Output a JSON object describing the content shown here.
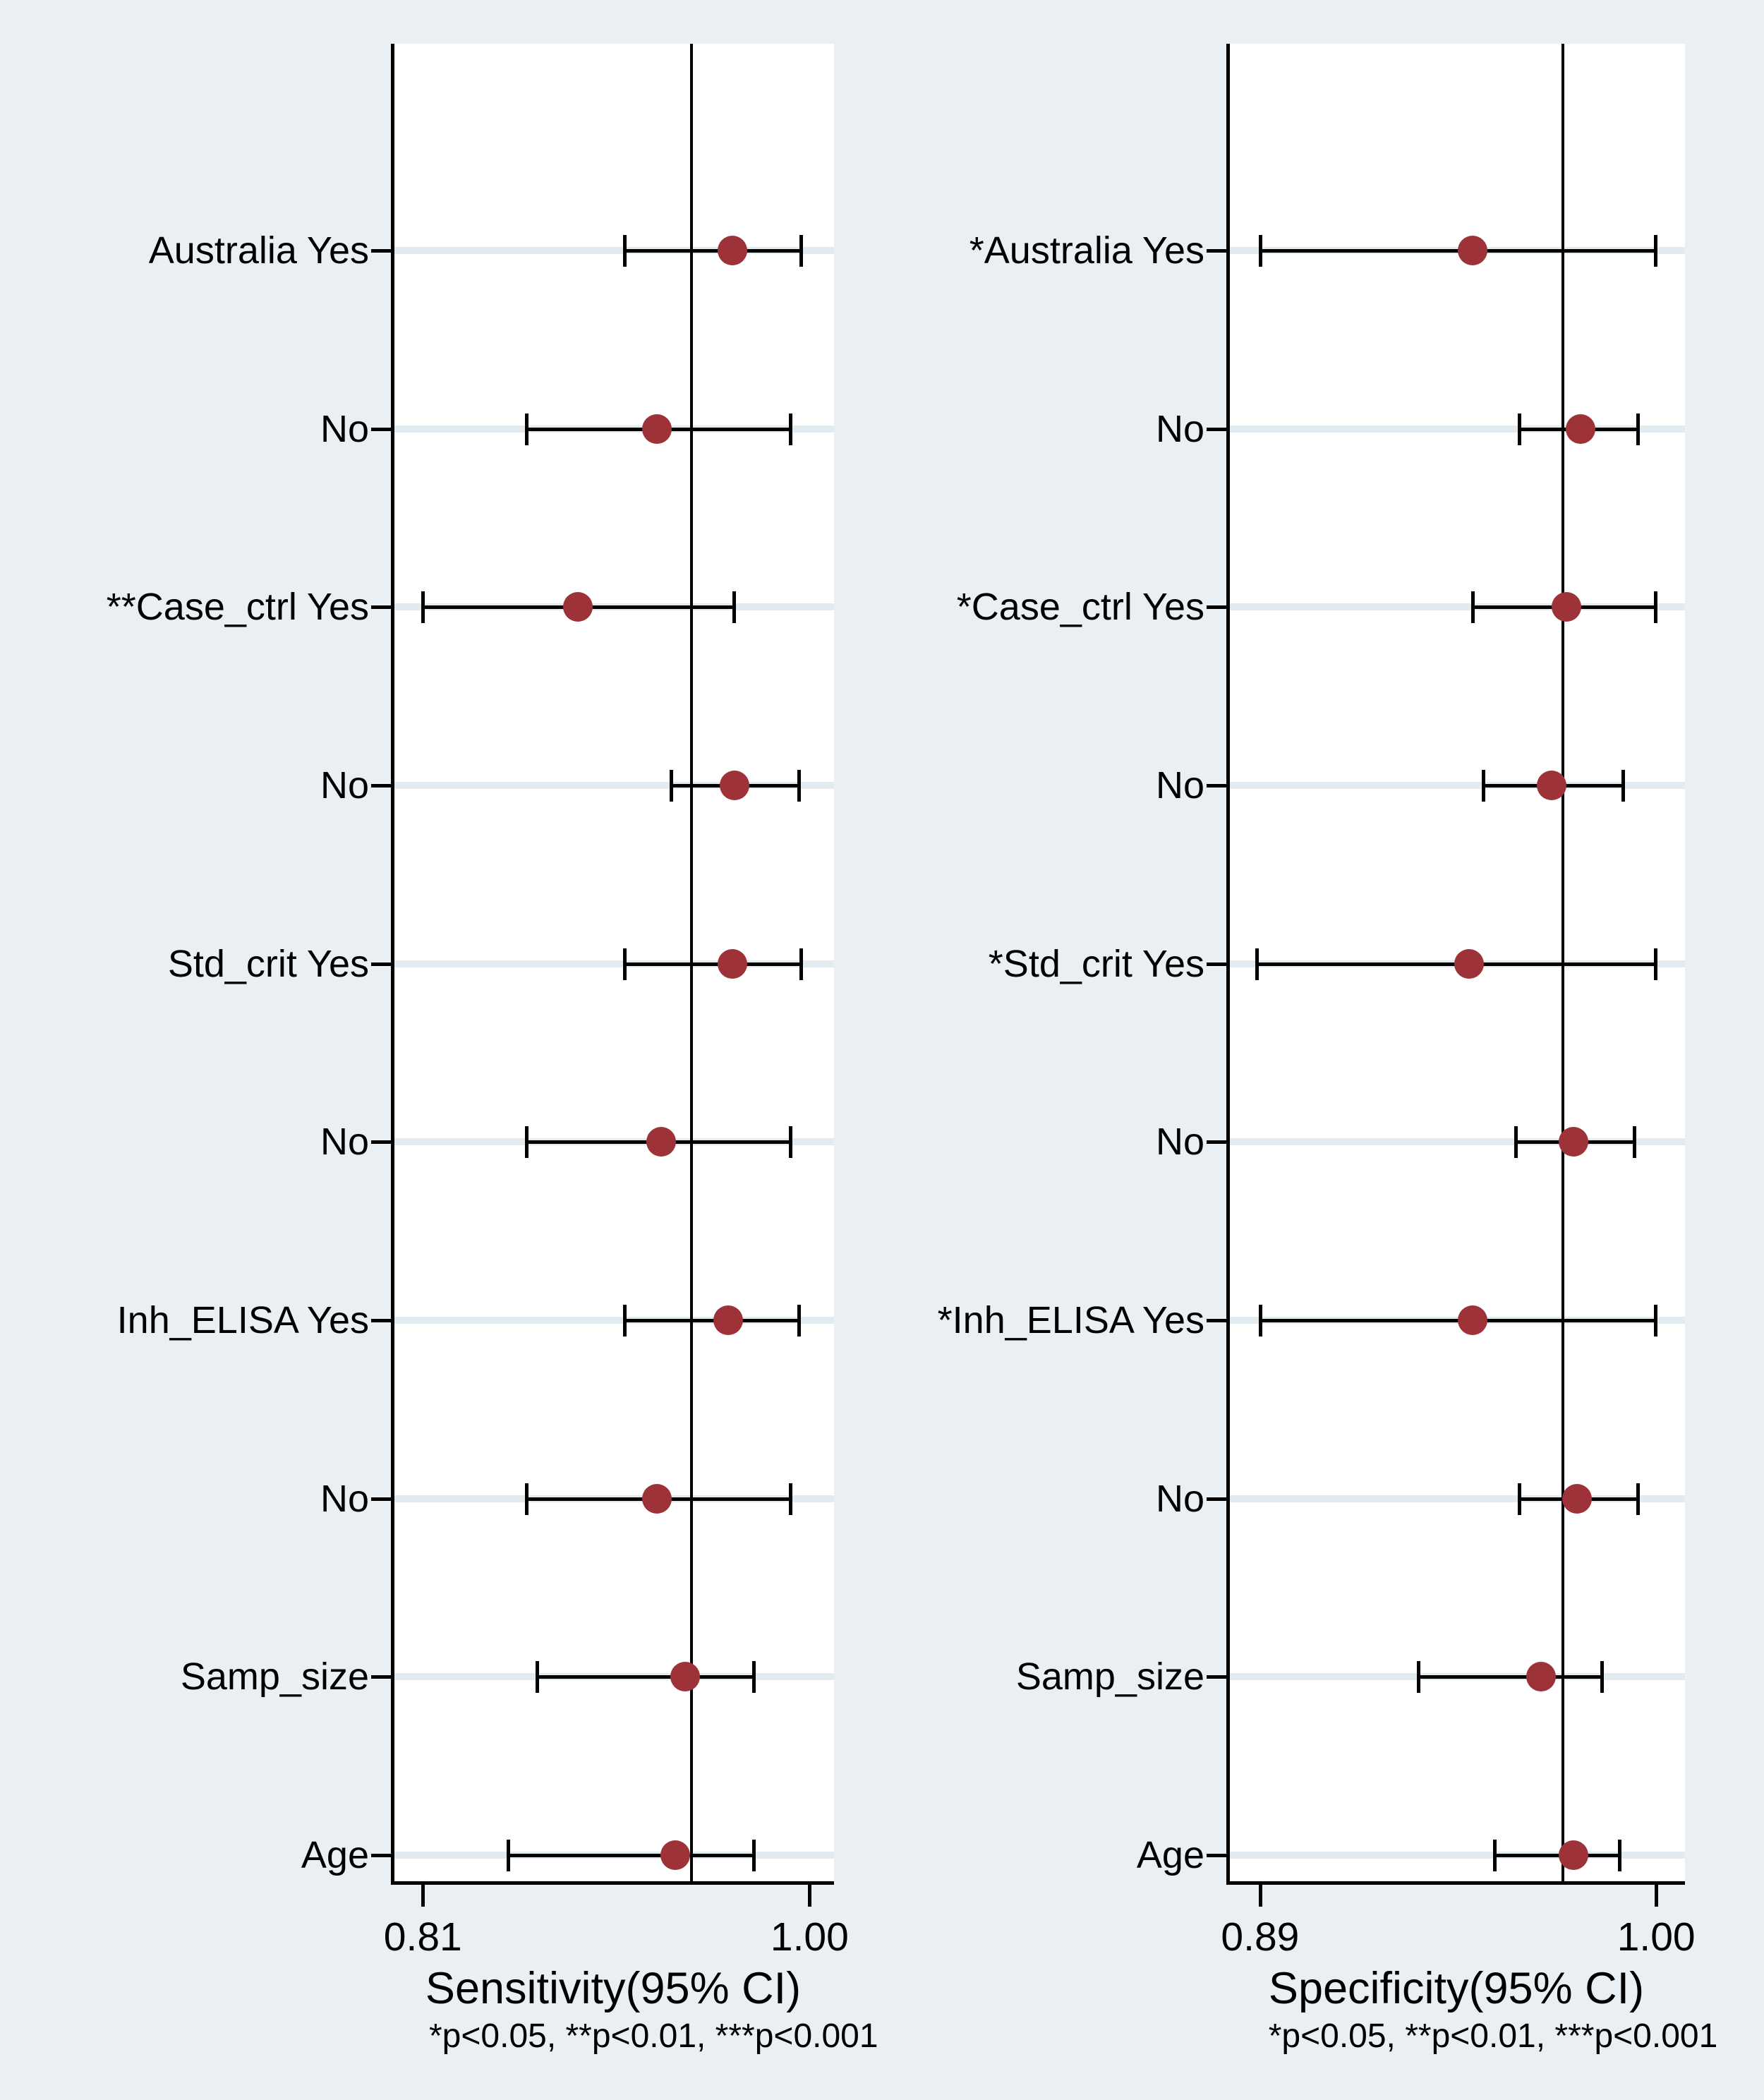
{
  "figure": {
    "background_color": "#e9eff2",
    "plot_background_color": "#ffffff",
    "marker_color": "#9d3338",
    "gridline_color": "#e1ebf0",
    "axis_color": "#000000"
  },
  "chart_data": [
    {
      "type": "scatter",
      "subtype": "forest-plot",
      "panel": "sensitivity",
      "xlabel": "Sensitivity(95% CI)",
      "footnote": "*p<0.05, **p<0.01, ***p<0.001",
      "xlim": [
        0.795,
        1.012
      ],
      "x_ticks": [
        {
          "value": 0.81,
          "label": "0.81"
        },
        {
          "value": 1.0,
          "label": "1.00"
        }
      ],
      "ref_line_value": 0.942,
      "grid": true,
      "rows": [
        {
          "label": "Australia Yes",
          "estimate": 0.962,
          "ci_low": 0.909,
          "ci_high": 0.996
        },
        {
          "label": "No",
          "estimate": 0.925,
          "ci_low": 0.861,
          "ci_high": 0.991
        },
        {
          "label": "**Case_ctrl Yes",
          "estimate": 0.886,
          "ci_low": 0.81,
          "ci_high": 0.963
        },
        {
          "label": "No",
          "estimate": 0.963,
          "ci_low": 0.932,
          "ci_high": 0.995
        },
        {
          "label": "Std_crit Yes",
          "estimate": 0.962,
          "ci_low": 0.909,
          "ci_high": 0.996
        },
        {
          "label": "No",
          "estimate": 0.927,
          "ci_low": 0.861,
          "ci_high": 0.991
        },
        {
          "label": "Inh_ELISA Yes",
          "estimate": 0.96,
          "ci_low": 0.909,
          "ci_high": 0.995
        },
        {
          "label": "No",
          "estimate": 0.925,
          "ci_low": 0.861,
          "ci_high": 0.991
        },
        {
          "label": "Samp_size",
          "estimate": 0.939,
          "ci_low": 0.866,
          "ci_high": 0.973
        },
        {
          "label": "Age",
          "estimate": 0.934,
          "ci_low": 0.852,
          "ci_high": 0.973
        }
      ]
    },
    {
      "type": "scatter",
      "subtype": "forest-plot",
      "panel": "specificity",
      "xlabel": "Specificity(95% CI)",
      "footnote": "*p<0.05, **p<0.01, ***p<0.001",
      "xlim": [
        0.881,
        1.008
      ],
      "x_ticks": [
        {
          "value": 0.89,
          "label": "0.89"
        },
        {
          "value": 1.0,
          "label": "1.00"
        }
      ],
      "ref_line_value": 0.974,
      "grid": true,
      "rows": [
        {
          "label": "*Australia Yes",
          "estimate": 0.949,
          "ci_low": 0.89,
          "ci_high": 1.0
        },
        {
          "label": "No",
          "estimate": 0.979,
          "ci_low": 0.962,
          "ci_high": 0.995
        },
        {
          "label": "*Case_ctrl Yes",
          "estimate": 0.975,
          "ci_low": 0.949,
          "ci_high": 1.0
        },
        {
          "label": "No",
          "estimate": 0.971,
          "ci_low": 0.952,
          "ci_high": 0.991
        },
        {
          "label": "*Std_crit Yes",
          "estimate": 0.948,
          "ci_low": 0.889,
          "ci_high": 1.0
        },
        {
          "label": "No",
          "estimate": 0.977,
          "ci_low": 0.961,
          "ci_high": 0.994
        },
        {
          "label": "*Inh_ELISA Yes",
          "estimate": 0.949,
          "ci_low": 0.89,
          "ci_high": 1.0
        },
        {
          "label": "No",
          "estimate": 0.978,
          "ci_low": 0.962,
          "ci_high": 0.995
        },
        {
          "label": "Samp_size",
          "estimate": 0.968,
          "ci_low": 0.934,
          "ci_high": 0.985
        },
        {
          "label": "Age",
          "estimate": 0.977,
          "ci_low": 0.955,
          "ci_high": 0.99
        }
      ]
    }
  ]
}
